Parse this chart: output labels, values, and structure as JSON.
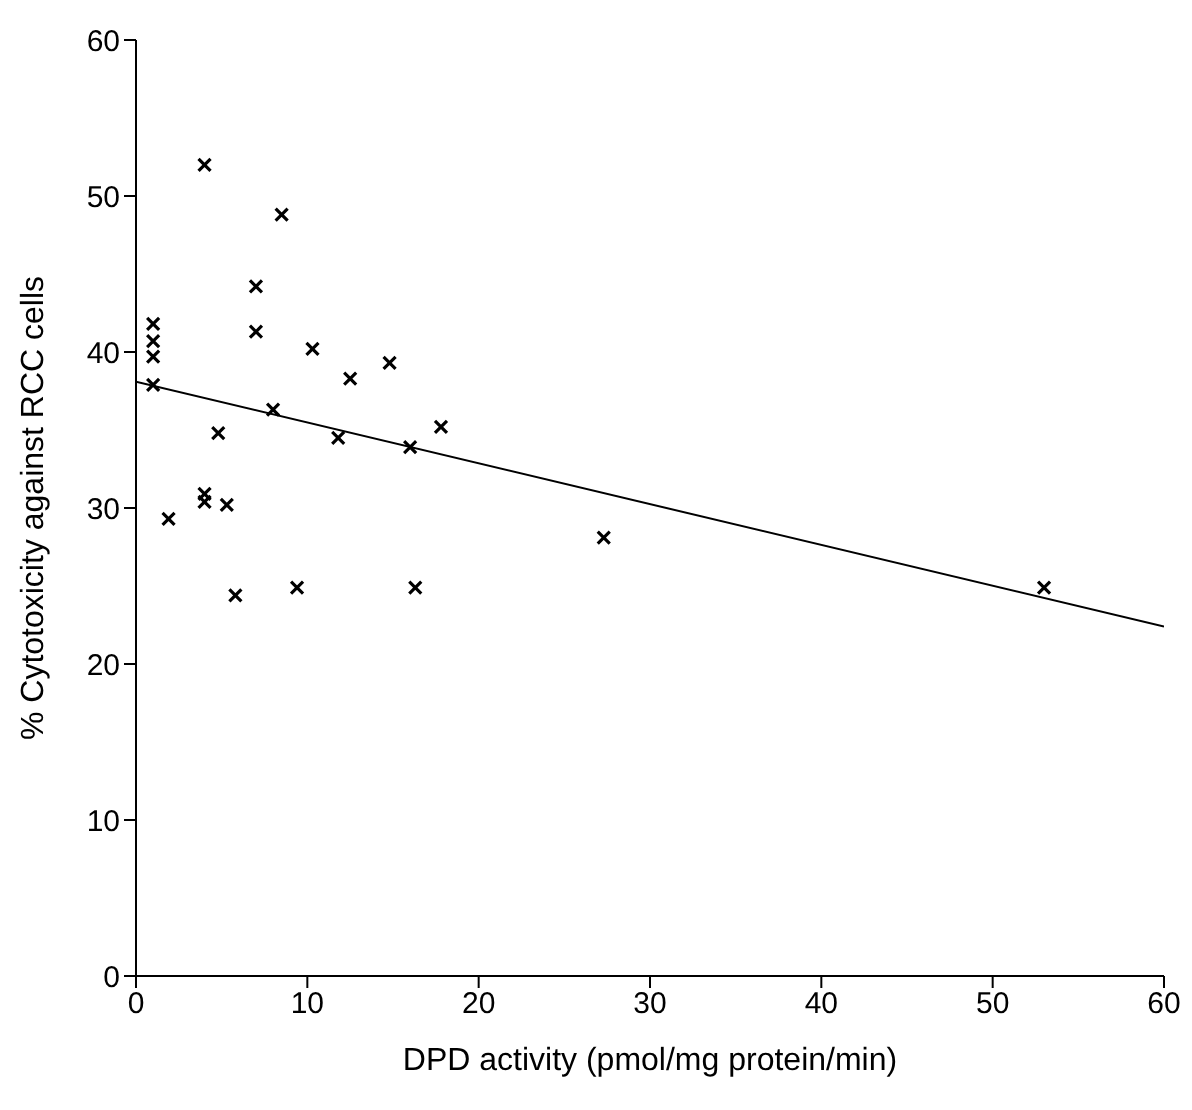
{
  "chart_data": {
    "type": "scatter",
    "xlabel": "DPD activity (pmol/mg protein/min)",
    "ylabel": "% Cytotoxicity against RCC cells",
    "xlim": [
      0,
      60
    ],
    "ylim": [
      0,
      60
    ],
    "xticks": [
      0,
      10,
      20,
      30,
      40,
      50,
      60
    ],
    "yticks": [
      0,
      10,
      20,
      30,
      40,
      50,
      60
    ],
    "marker": "cross",
    "series": [
      {
        "color": "#000000",
        "x": [
          1,
          1,
          1,
          1,
          4,
          8.5,
          7,
          7,
          10.3,
          14.8,
          12.5,
          8,
          4.8,
          11.8,
          16,
          17.8,
          4,
          4,
          5.3,
          1.9,
          27.3,
          9.4,
          16.3,
          5.8,
          53
        ],
        "values": [
          41.8,
          40.7,
          39.7,
          37.9,
          52,
          48.8,
          44.2,
          41.3,
          40.2,
          39.3,
          38.3,
          36.3,
          34.8,
          34.5,
          33.9,
          35.2,
          30.9,
          30.4,
          30.2,
          29.3,
          28.1,
          24.9,
          24.9,
          24.4,
          24.9
        ]
      },
      {
        "type": "line",
        "color": "#000000",
        "marker": "none",
        "line_style": "solid",
        "x": [
          0,
          60
        ],
        "values": [
          38.1,
          22.4
        ]
      }
    ]
  }
}
